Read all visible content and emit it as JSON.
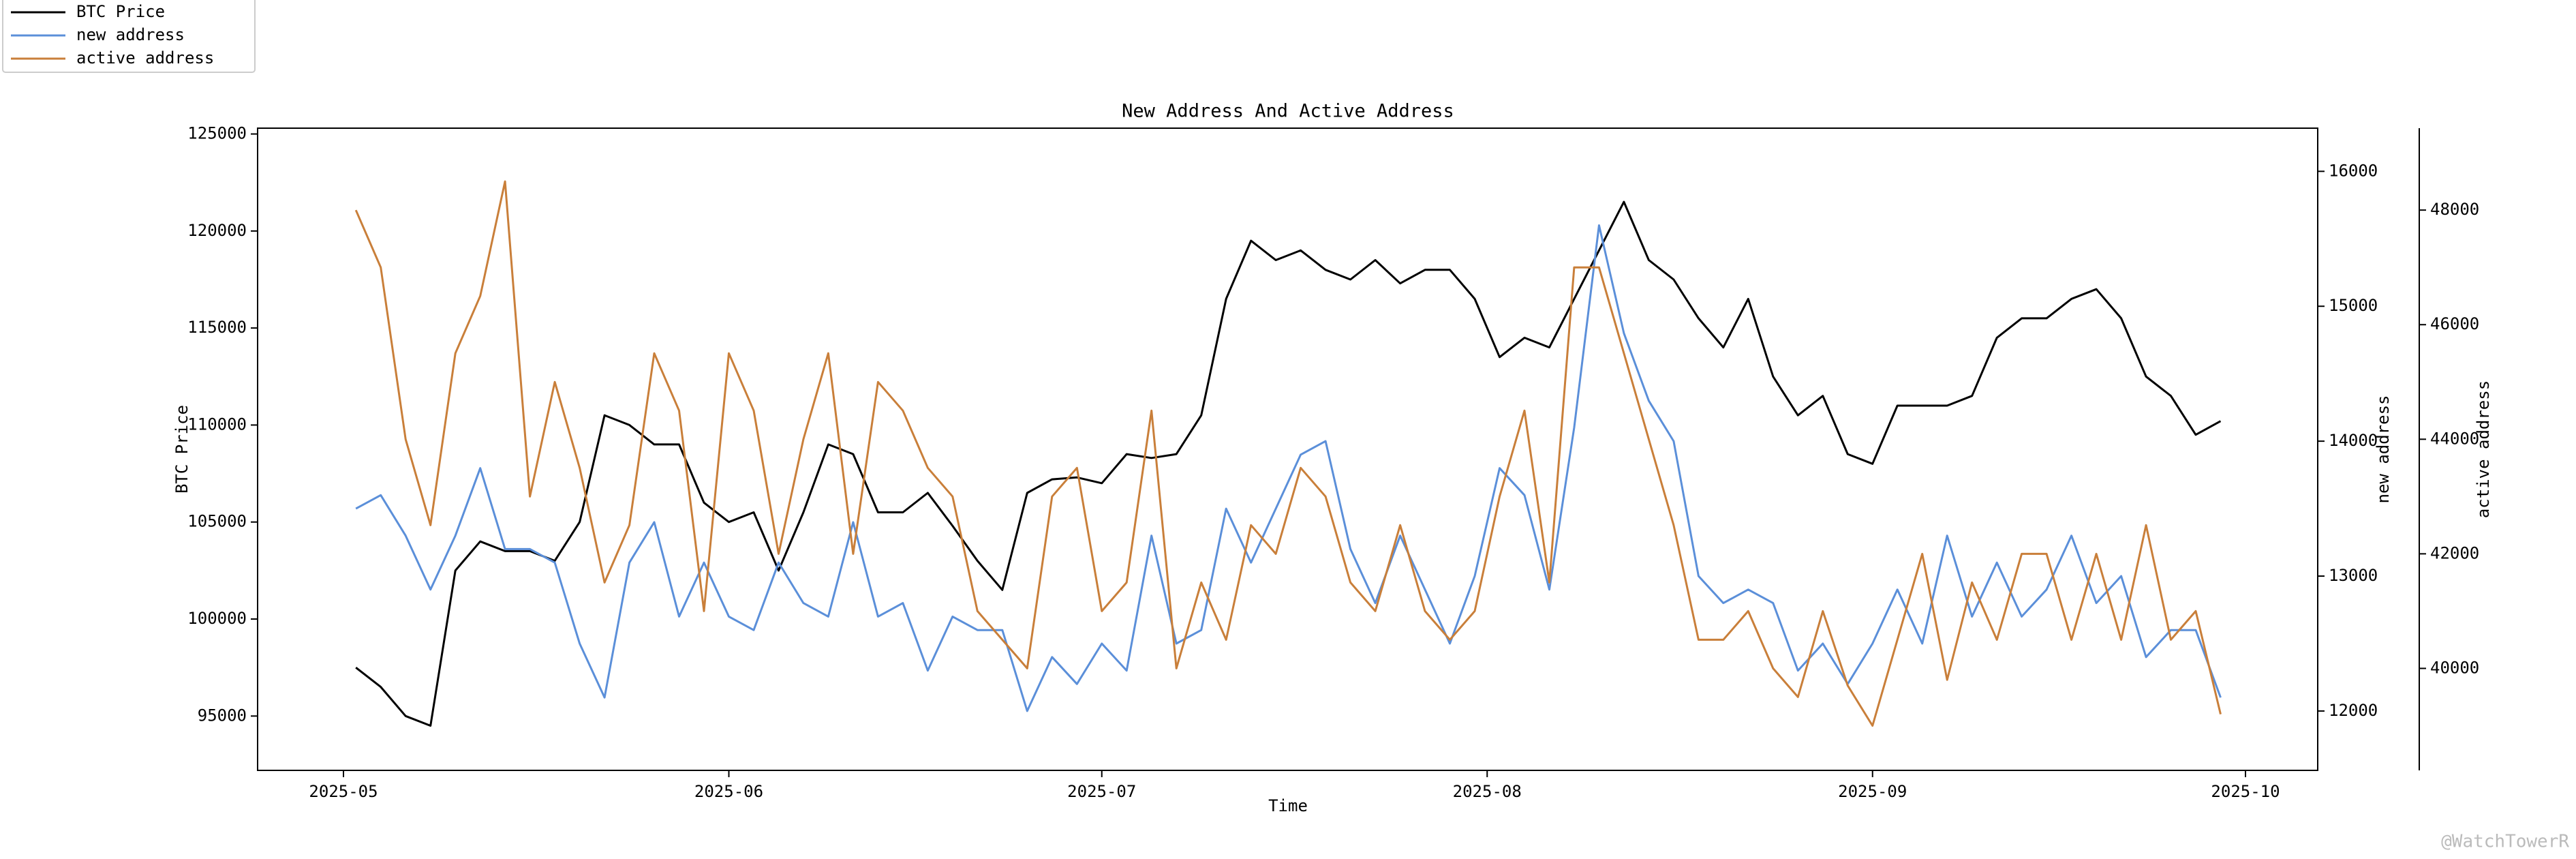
{
  "chart_data": {
    "type": "line",
    "title": "New Address And Active Address",
    "x_label": "Time",
    "y_label": "BTC Price",
    "y2_label": "new address",
    "y3_label": "active address",
    "watermark": "@WatchTowerR",
    "xticks": [
      "2025-05",
      "2025-06",
      "2025-07",
      "2025-08",
      "2025-09",
      "2025-10"
    ],
    "ylim": [
      92200,
      125300
    ],
    "yticks": [
      95000,
      100000,
      105000,
      110000,
      115000,
      120000,
      125000
    ],
    "y2lim": [
      11560,
      16320
    ],
    "y2ticks": [
      12000,
      13000,
      14000,
      15000,
      16000
    ],
    "y3lim": [
      38220,
      49430
    ],
    "y3ticks": [
      40000,
      42000,
      44000,
      46000,
      48000
    ],
    "series": [
      {
        "name": "BTC Price",
        "color": "#000000",
        "axis": "y",
        "values": [
          97500,
          96500,
          95000,
          94500,
          102500,
          104000,
          103500,
          103500,
          103000,
          105000,
          110500,
          110000,
          109000,
          109000,
          106000,
          105000,
          105500,
          102500,
          105500,
          109000,
          108500,
          105500,
          105500,
          106500,
          104800,
          103000,
          101500,
          106500,
          107200,
          107300,
          107000,
          108500,
          108300,
          108500,
          110500,
          116500,
          119500,
          118500,
          119000,
          118000,
          117500,
          118500,
          117300,
          118000,
          118000,
          116500,
          113500,
          114500,
          114000,
          116500,
          119000,
          121500,
          118500,
          117500,
          115500,
          114000,
          116500,
          112500,
          110500,
          111500,
          108500,
          108000,
          111000,
          111000,
          111000,
          111500,
          114500,
          115500,
          115500,
          116500,
          117000,
          115500,
          112500,
          111500,
          109500,
          110200
        ]
      },
      {
        "name": "new address",
        "color": "#5b8fd9",
        "axis": "y2",
        "values": [
          13500,
          13600,
          13300,
          12900,
          13300,
          13800,
          13200,
          13200,
          13100,
          12500,
          12100,
          13100,
          13400,
          12700,
          13100,
          12700,
          12600,
          13100,
          12800,
          12700,
          13400,
          12700,
          12800,
          12300,
          12700,
          12600,
          12600,
          12000,
          12400,
          12200,
          12500,
          12300,
          13300,
          12500,
          12600,
          13500,
          13100,
          13500,
          13900,
          14000,
          13200,
          12800,
          13300,
          12900,
          12500,
          13000,
          13800,
          13600,
          12900,
          14100,
          15600,
          14800,
          14300,
          14000,
          13000,
          12800,
          12900,
          12800,
          12300,
          12500,
          12200,
          12500,
          12900,
          12500,
          13300,
          12700,
          13100,
          12700,
          12900,
          13300,
          12800,
          13000,
          12400,
          12600,
          12600,
          12100
        ]
      },
      {
        "name": "active address",
        "color": "#c97f3a",
        "axis": "y3",
        "values": [
          48000,
          47000,
          44000,
          42500,
          45500,
          46500,
          48500,
          43000,
          45000,
          43500,
          41500,
          42500,
          45500,
          44500,
          41000,
          45500,
          44500,
          42000,
          44000,
          45500,
          42000,
          45000,
          44500,
          43500,
          43000,
          41000,
          40500,
          40000,
          43000,
          43500,
          41000,
          41500,
          44500,
          40000,
          41500,
          40500,
          42500,
          42000,
          43500,
          43000,
          41500,
          41000,
          42500,
          41000,
          40500,
          41000,
          43000,
          44500,
          41500,
          47000,
          47000,
          45500,
          44000,
          42500,
          40500,
          40500,
          41000,
          40000,
          39500,
          41000,
          39700,
          39000,
          40500,
          42000,
          39800,
          41500,
          40500,
          42000,
          42000,
          40500,
          42000,
          40500,
          42500,
          40500,
          41000,
          39200
        ]
      }
    ]
  }
}
